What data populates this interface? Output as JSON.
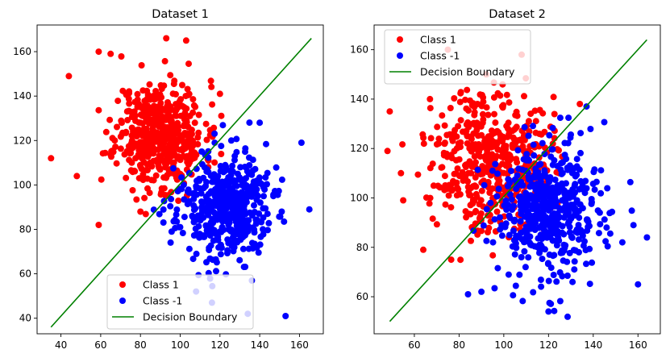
{
  "figure": {
    "background": "#ffffff"
  },
  "colors": {
    "class1": "#ff0000",
    "class2": "#0000ff",
    "boundary": "#008000",
    "axis": "#000000",
    "legend_border": "#cccccc"
  },
  "legend_labels": [
    "Class 1",
    "Class -1",
    "Decision Boundary"
  ],
  "chart_data": [
    {
      "type": "scatter",
      "title": "Dataset 1",
      "xlabel": "",
      "ylabel": "",
      "xlim": [
        28,
        172
      ],
      "ylim": [
        33,
        172
      ],
      "xticks": [
        40,
        60,
        80,
        100,
        120,
        140,
        160
      ],
      "yticks": [
        40,
        60,
        80,
        100,
        120,
        140,
        160
      ],
      "grid": false,
      "legend_position": "lower-center",
      "series": [
        {
          "name": "Class 1",
          "kind": "points",
          "color": "#ff0000",
          "center": [
            90,
            123
          ],
          "spread": [
            11,
            12
          ],
          "count": 500,
          "seed": 11,
          "outliers": [
            [
              35,
              112
            ],
            [
              44,
              149
            ],
            [
              59,
              82
            ],
            [
              93,
              166
            ],
            [
              103,
              165
            ],
            [
              59,
              160
            ],
            [
              65,
              159
            ],
            [
              48,
              104
            ],
            [
              120,
              141
            ],
            [
              80,
              88
            ]
          ]
        },
        {
          "name": "Class -1",
          "kind": "points",
          "color": "#0000ff",
          "center": [
            122,
            90
          ],
          "spread": [
            12,
            12
          ],
          "count": 500,
          "seed": 23,
          "outliers": [
            [
              165,
              89
            ],
            [
              161,
              119
            ],
            [
              153,
              41
            ],
            [
              140,
              128
            ],
            [
              116,
              47
            ],
            [
              100,
              81
            ],
            [
              134,
              42
            ],
            [
              108,
              52
            ]
          ]
        },
        {
          "name": "Decision Boundary",
          "kind": "line",
          "color": "#008000",
          "x": [
            35,
            166
          ],
          "y": [
            36,
            166
          ]
        }
      ]
    },
    {
      "type": "scatter",
      "title": "Dataset 2",
      "xlabel": "",
      "ylabel": "",
      "xlim": [
        42,
        170
      ],
      "ylim": [
        45,
        170
      ],
      "xticks": [
        60,
        80,
        100,
        120,
        140,
        160
      ],
      "yticks": [
        60,
        80,
        100,
        120,
        140,
        160
      ],
      "grid": false,
      "legend_position": "upper-left",
      "series": [
        {
          "name": "Class 1",
          "kind": "points",
          "color": "#ff0000",
          "center": [
            95,
            116
          ],
          "spread": [
            13,
            14
          ],
          "count": 500,
          "seed": 37,
          "outliers": [
            [
              49,
              135
            ],
            [
              48,
              119
            ],
            [
              64,
              79
            ],
            [
              75,
              160
            ],
            [
              108,
              158
            ],
            [
              54,
              110
            ],
            [
              67,
              140
            ],
            [
              134,
              138
            ],
            [
              55,
              99
            ]
          ]
        },
        {
          "name": "Class -1",
          "kind": "points",
          "color": "#0000ff",
          "center": [
            121,
            94
          ],
          "spread": [
            13,
            14
          ],
          "count": 500,
          "seed": 53,
          "outliers": [
            [
              160,
              65
            ],
            [
              164,
              84
            ],
            [
              137,
              137
            ],
            [
              120,
              54
            ],
            [
              90,
              62
            ],
            [
              84,
              61
            ],
            [
              158,
              89
            ],
            [
              153,
              82
            ]
          ]
        },
        {
          "name": "Decision Boundary",
          "kind": "line",
          "color": "#008000",
          "x": [
            49,
            164
          ],
          "y": [
            50,
            164
          ]
        }
      ]
    }
  ]
}
